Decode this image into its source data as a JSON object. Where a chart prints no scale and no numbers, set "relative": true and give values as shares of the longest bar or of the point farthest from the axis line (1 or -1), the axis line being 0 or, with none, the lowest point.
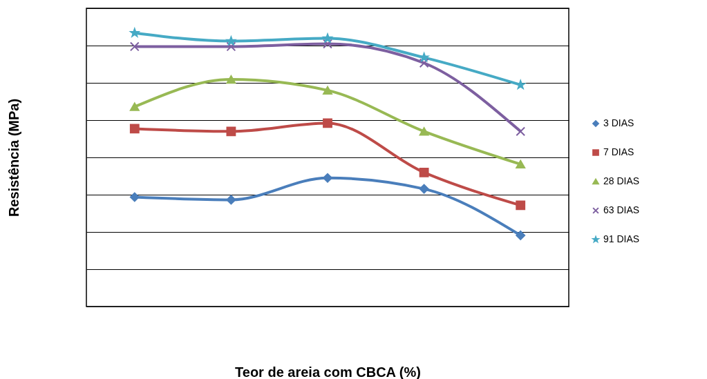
{
  "chart_data": {
    "type": "line",
    "relative": true,
    "xlabel": "Teor de areia com CBCA (%)",
    "ylabel": "Resistência (MPa)",
    "categories": [
      null,
      null,
      null,
      null,
      null
    ],
    "grid": "y",
    "legend": "right",
    "series": [
      {
        "name": "3 DIAS",
        "color": "#4a7ebb",
        "marker": "diamond",
        "values": [
          0.4,
          0.39,
          0.47,
          0.43,
          0.26
        ]
      },
      {
        "name": "7 DIAS",
        "color": "#be4b48",
        "marker": "square",
        "values": [
          0.65,
          0.64,
          0.67,
          0.49,
          0.37
        ]
      },
      {
        "name": "28 DIAS",
        "color": "#98b954",
        "marker": "triangle",
        "values": [
          0.73,
          0.83,
          0.79,
          0.64,
          0.52
        ]
      },
      {
        "name": "63 DIAS",
        "color": "#7d5fa0",
        "marker": "cross",
        "values": [
          0.95,
          0.95,
          0.96,
          0.89,
          0.64
        ]
      },
      {
        "name": "91  DIAS",
        "color": "#46aac5",
        "marker": "star",
        "values": [
          1,
          0.97,
          0.98,
          0.91,
          0.81
        ]
      }
    ]
  }
}
